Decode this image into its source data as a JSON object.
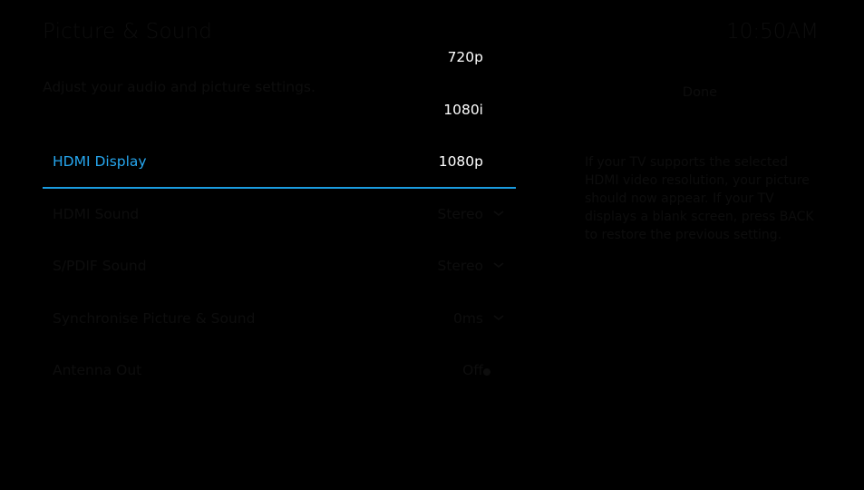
{
  "header": {
    "title": "Picture & Sound",
    "clock": "10:50AM",
    "subtitle": "Adjust your audio and picture settings."
  },
  "actions": {
    "done_label": "Done"
  },
  "help": {
    "text": "If your TV supports the selected HDMI video resolution, your picture should now appear. If your TV displays a blank screen, press BACK to restore the previous setting."
  },
  "resolution_options": [
    "720p",
    "1080i",
    "1080p"
  ],
  "settings": [
    {
      "label": "HDMI Display",
      "value": "1080p",
      "control": "dropdown",
      "active": true
    },
    {
      "label": "HDMI Sound",
      "value": "Stereo",
      "control": "dropdown",
      "active": false
    },
    {
      "label": "S/PDIF Sound",
      "value": "Stereo",
      "control": "dropdown",
      "active": false
    },
    {
      "label": "Synchronise Picture & Sound",
      "value": "0ms",
      "control": "dropdown",
      "active": false
    },
    {
      "label": "Antenna Out",
      "value": "Off",
      "control": "toggle",
      "active": false
    }
  ],
  "colors": {
    "background": "#000000",
    "accent": "#26a6ee",
    "underline": "#1a9be0",
    "dimmed_text": "#0d0d0d"
  },
  "icons": {
    "dropdown": "chevron-down-icon",
    "toggle": "toggle-dot-icon"
  }
}
